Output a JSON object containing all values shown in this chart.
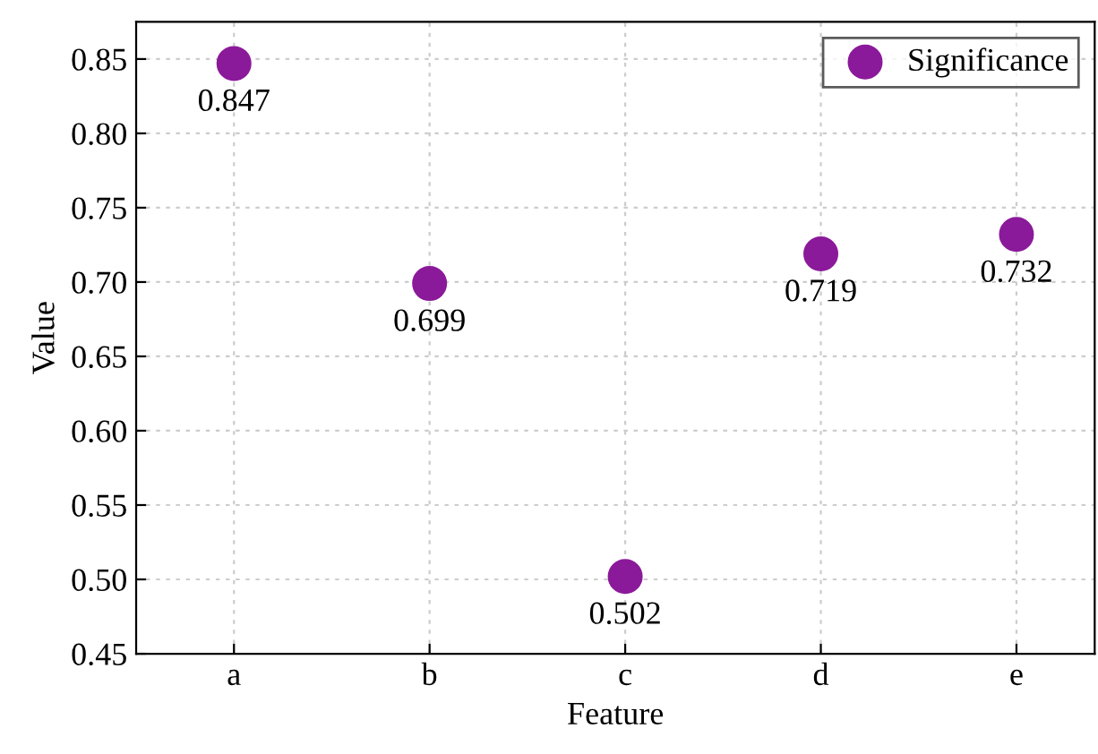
{
  "chart_data": {
    "type": "scatter",
    "xlabel": "Feature",
    "ylabel": "Value",
    "categories": [
      "a",
      "b",
      "c",
      "d",
      "e"
    ],
    "series": [
      {
        "name": "Significance",
        "color": "#8b1a9a",
        "values": [
          0.847,
          0.699,
          0.502,
          0.719,
          0.732
        ]
      }
    ],
    "ylim": [
      0.45,
      0.875
    ],
    "yticks": [
      0.45,
      {
        "value": 0.5,
        "label": "0.50"
      },
      0.55,
      {
        "value": 0.6,
        "label": "0.60"
      },
      0.65,
      {
        "value": 0.7,
        "label": "0.70"
      },
      0.75,
      {
        "value": 0.8,
        "label": "0.80"
      },
      0.85
    ],
    "grid": true,
    "legend": "top right",
    "marker": "circle",
    "data_labels": true
  }
}
